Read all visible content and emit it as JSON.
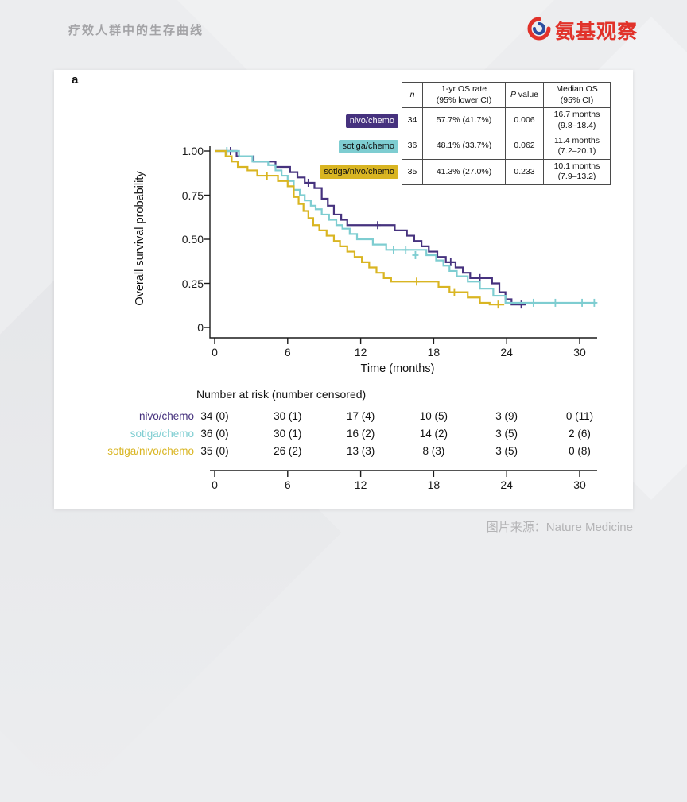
{
  "header": {
    "title": "疗效人群中的生存曲线",
    "logo_text": "氨基观察"
  },
  "footer": {
    "caption": "图片来源：Nature Medicine"
  },
  "figure": {
    "panel_label": "a"
  },
  "chart_data": {
    "type": "line",
    "variant": "kaplan-meier-step",
    "xlabel": "Time (months)",
    "ylabel": "Overall survival probability",
    "xlim": [
      0,
      31.5
    ],
    "ylim": [
      0,
      1.0
    ],
    "grid": false,
    "xticks": [
      0,
      6,
      12,
      18,
      24,
      30
    ],
    "yticks": [
      {
        "v": 1.0,
        "label": "1.00"
      },
      {
        "v": 0.75,
        "label": "0.75"
      },
      {
        "v": 0.5,
        "label": "0.50"
      },
      {
        "v": 0.25,
        "label": "0.25"
      },
      {
        "v": 0,
        "label": "0"
      }
    ],
    "series": [
      {
        "id": "nivo-chemo",
        "name": "nivo/chemo",
        "color": "#46327e",
        "label_text": "#ffffff",
        "end": 25.6,
        "steps": [
          [
            1.8,
            0.97
          ],
          [
            3.2,
            0.94
          ],
          [
            5.0,
            0.91
          ],
          [
            6.2,
            0.88
          ],
          [
            6.8,
            0.85
          ],
          [
            7.4,
            0.82
          ],
          [
            8.2,
            0.79
          ],
          [
            8.8,
            0.73
          ],
          [
            9.3,
            0.69
          ],
          [
            9.8,
            0.64
          ],
          [
            10.4,
            0.61
          ],
          [
            10.9,
            0.58
          ],
          [
            14.8,
            0.55
          ],
          [
            15.8,
            0.52
          ],
          [
            16.4,
            0.49
          ],
          [
            17.0,
            0.46
          ],
          [
            17.6,
            0.43
          ],
          [
            18.3,
            0.4
          ],
          [
            19.0,
            0.37
          ],
          [
            19.8,
            0.34
          ],
          [
            20.4,
            0.31
          ],
          [
            21.0,
            0.28
          ],
          [
            22.8,
            0.25
          ],
          [
            23.4,
            0.2
          ],
          [
            23.9,
            0.16
          ],
          [
            24.4,
            0.13
          ]
        ],
        "censors": [
          [
            1.3,
            1.0
          ],
          [
            7.7,
            0.82
          ],
          [
            13.4,
            0.58
          ],
          [
            19.4,
            0.37
          ],
          [
            21.8,
            0.28
          ],
          [
            25.2,
            0.13
          ]
        ]
      },
      {
        "id": "sotiga-chemo",
        "name": "sotiga/chemo",
        "color": "#7ecdd1",
        "label_text": "#111111",
        "end": 31.3,
        "steps": [
          [
            2.0,
            0.97
          ],
          [
            3.1,
            0.94
          ],
          [
            4.4,
            0.92
          ],
          [
            5.0,
            0.89
          ],
          [
            5.5,
            0.86
          ],
          [
            6.0,
            0.83
          ],
          [
            6.5,
            0.78
          ],
          [
            7.0,
            0.75
          ],
          [
            7.4,
            0.72
          ],
          [
            7.9,
            0.69
          ],
          [
            8.3,
            0.67
          ],
          [
            8.8,
            0.64
          ],
          [
            9.4,
            0.61
          ],
          [
            10.0,
            0.58
          ],
          [
            10.5,
            0.56
          ],
          [
            11.1,
            0.53
          ],
          [
            11.7,
            0.5
          ],
          [
            13.0,
            0.47
          ],
          [
            14.1,
            0.44
          ],
          [
            17.4,
            0.41
          ],
          [
            18.2,
            0.38
          ],
          [
            18.8,
            0.35
          ],
          [
            19.3,
            0.32
          ],
          [
            19.9,
            0.29
          ],
          [
            20.8,
            0.26
          ],
          [
            21.8,
            0.22
          ],
          [
            22.9,
            0.18
          ],
          [
            23.9,
            0.14
          ]
        ],
        "censors": [
          [
            1.0,
            1.0
          ],
          [
            14.7,
            0.44
          ],
          [
            15.7,
            0.44
          ],
          [
            16.5,
            0.41
          ],
          [
            26.2,
            0.14
          ],
          [
            28.0,
            0.14
          ],
          [
            30.2,
            0.14
          ],
          [
            31.2,
            0.14
          ]
        ]
      },
      {
        "id": "sotiga-nivo-chemo",
        "name": "sotiga/nivo/chemo",
        "color": "#d9b522",
        "label_text": "#111111",
        "end": 23.8,
        "steps": [
          [
            0.9,
            0.97
          ],
          [
            1.4,
            0.94
          ],
          [
            1.9,
            0.91
          ],
          [
            2.7,
            0.89
          ],
          [
            3.5,
            0.86
          ],
          [
            5.2,
            0.83
          ],
          [
            6.0,
            0.8
          ],
          [
            6.5,
            0.74
          ],
          [
            6.9,
            0.7
          ],
          [
            7.3,
            0.66
          ],
          [
            7.7,
            0.62
          ],
          [
            8.1,
            0.58
          ],
          [
            8.6,
            0.55
          ],
          [
            9.2,
            0.52
          ],
          [
            9.8,
            0.49
          ],
          [
            10.3,
            0.46
          ],
          [
            10.9,
            0.43
          ],
          [
            11.5,
            0.4
          ],
          [
            12.1,
            0.37
          ],
          [
            12.7,
            0.34
          ],
          [
            13.3,
            0.31
          ],
          [
            13.9,
            0.28
          ],
          [
            14.5,
            0.26
          ],
          [
            18.4,
            0.23
          ],
          [
            19.3,
            0.2
          ],
          [
            20.8,
            0.17
          ],
          [
            21.8,
            0.14
          ],
          [
            22.6,
            0.13
          ]
        ],
        "censors": [
          [
            4.3,
            0.86
          ],
          [
            16.6,
            0.26
          ],
          [
            19.7,
            0.2
          ],
          [
            23.3,
            0.13
          ]
        ]
      }
    ],
    "stats_table": {
      "header_n": "n",
      "header_os": "1-yr OS rate\n(95% lower CI)",
      "header_p_italic": "P",
      "header_p_rest": " value",
      "header_median": "Median OS\n(95% CI)",
      "rows": [
        {
          "name": "nivo/chemo",
          "n": "34",
          "os": "57.7% (41.7%)",
          "p": "0.006",
          "median": "16.7 months\n(9.8–18.4)"
        },
        {
          "name": "sotiga/chemo",
          "n": "36",
          "os": "48.1% (33.7%)",
          "p": "0.062",
          "median": "11.4 months\n(7.2–20.1)"
        },
        {
          "name": "sotiga/nivo/chemo",
          "n": "35",
          "os": "41.3% (27.0%)",
          "p": "0.233",
          "median": "10.1 months\n(7.9–13.2)"
        }
      ]
    },
    "risk_table": {
      "title": "Number at risk (number censored)",
      "times": [
        0,
        6,
        12,
        18,
        24,
        30
      ],
      "rows": [
        {
          "name": "nivo/chemo",
          "values": [
            "34 (0)",
            "30 (1)",
            "17 (4)",
            "10 (5)",
            "3 (9)",
            "0 (11)"
          ]
        },
        {
          "name": "sotiga/chemo",
          "values": [
            "36 (0)",
            "30 (1)",
            "16 (2)",
            "14 (2)",
            "3 (5)",
            "2 (6)"
          ]
        },
        {
          "name": "sotiga/nivo/chemo",
          "values": [
            "35 (0)",
            "26 (2)",
            "13 (3)",
            "8 (3)",
            "3 (5)",
            "0 (8)"
          ]
        }
      ]
    }
  }
}
